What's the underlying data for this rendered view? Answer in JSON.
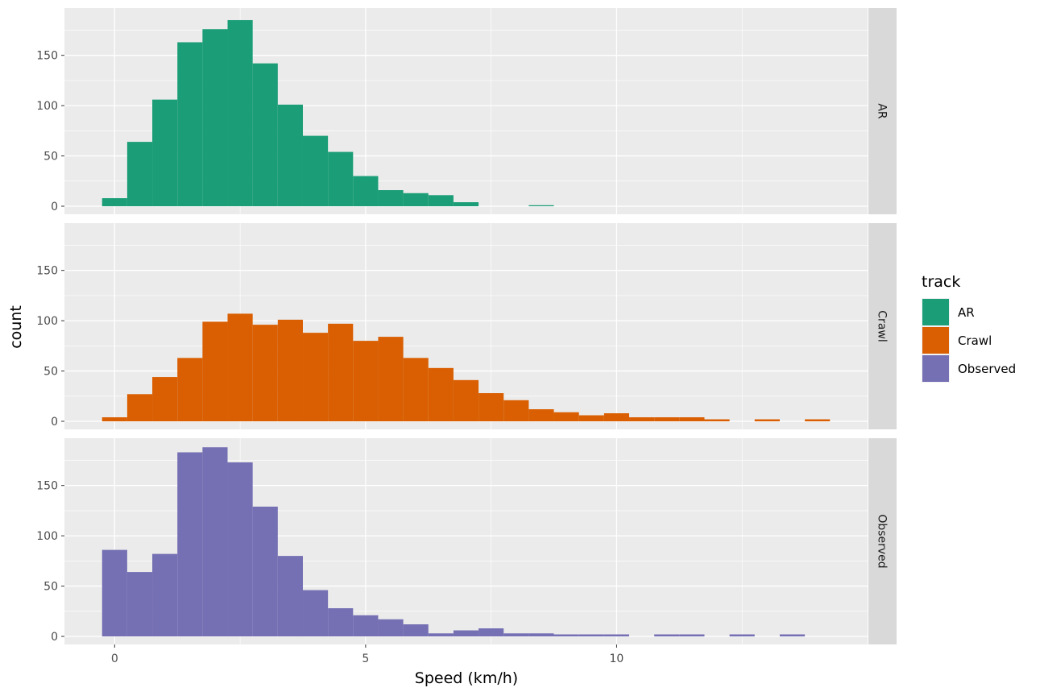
{
  "chart_data": {
    "type": "bar",
    "subtype": "faceted-histogram",
    "xlabel": "Speed (km/h)",
    "ylabel": "count",
    "xlim": [
      -1.0,
      15.0
    ],
    "ylim": [
      -8,
      197
    ],
    "x_ticks": [
      0,
      5,
      10
    ],
    "y_ticks": [
      0,
      50,
      100,
      150
    ],
    "grid": true,
    "bin_width": 0.5,
    "bin_left_edges": [
      -0.25,
      0.25,
      0.75,
      1.25,
      1.75,
      2.25,
      2.75,
      3.25,
      3.75,
      4.25,
      4.75,
      5.25,
      5.75,
      6.25,
      6.75,
      7.25,
      7.75,
      8.25,
      8.75,
      9.25,
      9.75,
      10.25,
      10.75,
      11.25,
      11.75,
      12.25,
      12.75,
      13.25,
      13.75
    ],
    "legend": {
      "title": "track",
      "position": "right",
      "entries": [
        "AR",
        "Crawl",
        "Observed"
      ]
    },
    "series": [
      {
        "name": "AR",
        "color": "#1b9e77",
        "values": [
          8,
          64,
          106,
          163,
          176,
          185,
          142,
          101,
          70,
          54,
          30,
          16,
          13,
          11,
          4,
          0,
          0,
          1,
          0,
          0,
          0,
          0,
          0,
          0,
          0,
          0,
          0,
          0,
          0
        ]
      },
      {
        "name": "Crawl",
        "color": "#d95f02",
        "values": [
          4,
          27,
          44,
          63,
          99,
          107,
          96,
          101,
          88,
          97,
          80,
          84,
          63,
          53,
          41,
          28,
          21,
          12,
          9,
          6,
          8,
          4,
          4,
          4,
          2,
          0,
          2,
          0,
          2
        ]
      },
      {
        "name": "Observed",
        "color": "#7570b3",
        "values": [
          86,
          64,
          82,
          183,
          188,
          173,
          129,
          80,
          46,
          28,
          21,
          17,
          12,
          3,
          6,
          8,
          3,
          3,
          2,
          2,
          2,
          0,
          2,
          2,
          0,
          2,
          0,
          2,
          0
        ]
      }
    ]
  }
}
